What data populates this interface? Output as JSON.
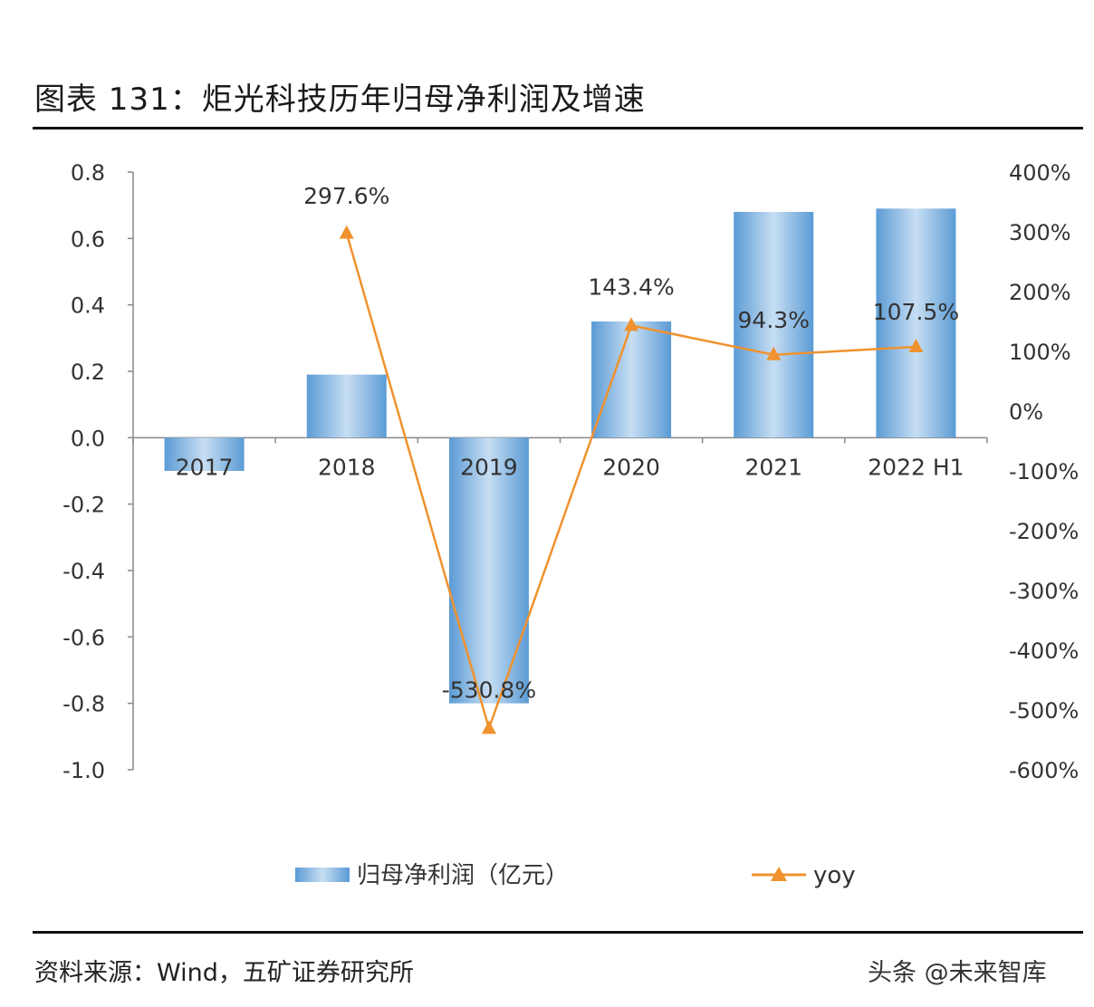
{
  "figure": {
    "title": "图表 131：炬光科技历年归母净利润及增速",
    "source": "资料来源：Wind，五矿证券研究所",
    "watermark": "头条 @未来智库"
  },
  "colors": {
    "bar": "#5b9bd5",
    "bar_light": "#c7def3",
    "line": "#f0922e",
    "axis": "#888888"
  },
  "chart_data": {
    "type": "bar",
    "categories": [
      "2017",
      "2018",
      "2019",
      "2020",
      "2021",
      "2022 H1"
    ],
    "series": [
      {
        "name": "归母净利润（亿元）",
        "type": "bar",
        "axis": "left",
        "values": [
          -0.1,
          0.19,
          -0.8,
          0.35,
          0.68,
          0.69
        ]
      },
      {
        "name": "yoy",
        "type": "line",
        "axis": "right",
        "marker": "triangle",
        "values": [
          null,
          297.6,
          -530.8,
          143.4,
          94.3,
          107.5
        ],
        "labels": [
          "",
          "297.6%",
          "-530.8%",
          "143.4%",
          "94.3%",
          "107.5%"
        ]
      }
    ],
    "y_left": {
      "range": [
        -1.0,
        0.8
      ],
      "ticks": [
        "0.8",
        "0.6",
        "0.4",
        "0.2",
        "0.0",
        "-0.2",
        "-0.4",
        "-0.6",
        "-0.8",
        "-1.0"
      ],
      "tick_values": [
        0.8,
        0.6,
        0.4,
        0.2,
        0.0,
        -0.2,
        -0.4,
        -0.6,
        -0.8,
        -1.0
      ]
    },
    "y_right": {
      "range": [
        -600,
        400
      ],
      "ticks": [
        "400%",
        "300%",
        "200%",
        "100%",
        "0%",
        "-100%",
        "-200%",
        "-300%",
        "-400%",
        "-500%",
        "-600%"
      ],
      "tick_values": [
        400,
        300,
        200,
        100,
        0,
        -100,
        -200,
        -300,
        -400,
        -500,
        -600
      ]
    },
    "grid": false,
    "legend": "bottom"
  }
}
